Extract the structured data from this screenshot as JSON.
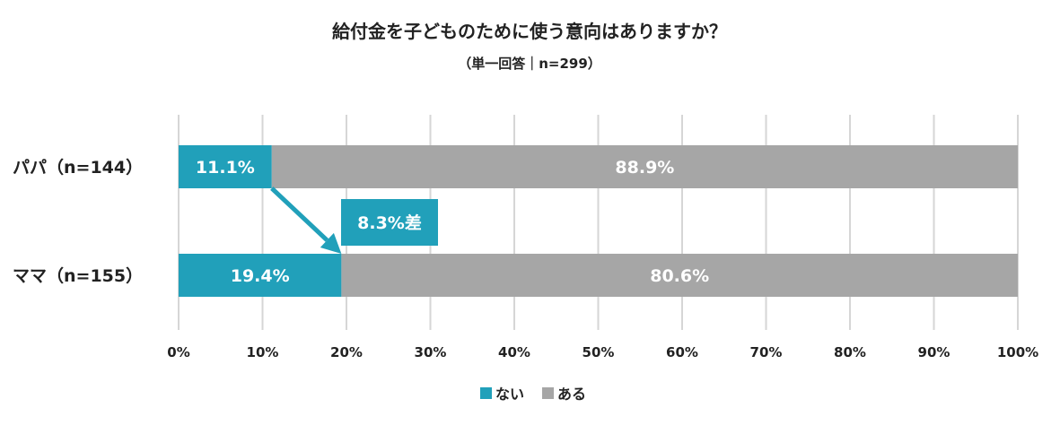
{
  "chart_data": {
    "type": "bar",
    "stacked": true,
    "orientation": "horizontal",
    "title": "給付金を子どものために使う意向はありますか？",
    "subtitle": "（単一回答｜n=299）",
    "categories": [
      "パパ（n=144）",
      "ママ（n=155）"
    ],
    "series": [
      {
        "name": "ない",
        "values": [
          11.1,
          19.4
        ],
        "labels": [
          "11.1%",
          "19.4%"
        ],
        "color": "#21a0ba"
      },
      {
        "name": "ある",
        "values": [
          88.9,
          80.6
        ],
        "labels": [
          "88.9%",
          "80.6%"
        ],
        "color": "#a6a6a6"
      }
    ],
    "xlim": [
      0,
      100
    ],
    "xticks": [
      0,
      10,
      20,
      30,
      40,
      50,
      60,
      70,
      80,
      90,
      100
    ],
    "xtick_labels": [
      "0%",
      "10%",
      "20%",
      "30%",
      "40%",
      "50%",
      "60%",
      "70%",
      "80%",
      "90%",
      "100%"
    ],
    "grid": true,
    "legend_position": "bottom",
    "annotation": {
      "text": "8.3%差",
      "color": "#21a0ba"
    }
  }
}
